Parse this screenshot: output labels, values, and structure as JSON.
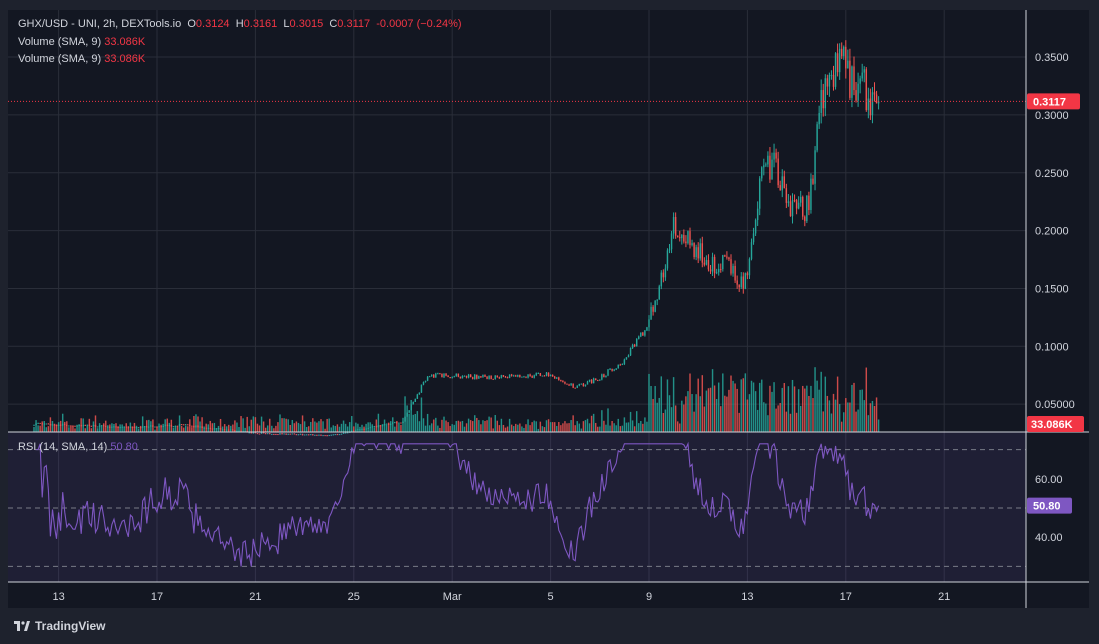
{
  "header": {
    "symbol": "GHX/USD - UNI, 2h, DEXTools.io",
    "o_label": "O",
    "o_value": "0.3124",
    "h_label": "H",
    "h_value": "0.3161",
    "l_label": "L",
    "l_value": "0.3015",
    "c_label": "C",
    "c_value": "0.3117",
    "change": "-0.0007 (−0.24%)"
  },
  "volume_legends": [
    {
      "label": "Volume (SMA, 9)",
      "value": "33.086K"
    },
    {
      "label": "Volume (SMA, 9)",
      "value": "33.086K"
    }
  ],
  "rsi_legend": {
    "label": "RSI (14, SMA, 14)",
    "value": "50.80"
  },
  "footer": {
    "brand": "TradingView"
  },
  "colors": {
    "background": "#131722",
    "up": "#26a69a",
    "down": "#ef5350",
    "rsi_line": "#7e57c2",
    "price_tag": "#f23645",
    "grid": "#2a2e39"
  },
  "chart_data": {
    "type": "candlestick",
    "price_axis": {
      "ticks": [
        "0.3500",
        "0.3000",
        "0.2500",
        "0.2000",
        "0.1500",
        "0.1000",
        "0.05000"
      ],
      "last_price": "0.3117",
      "volume_tag": "33.086K"
    },
    "x_axis": {
      "ticks": [
        {
          "label": "13",
          "date": "Feb 13"
        },
        {
          "label": "17",
          "date": "Feb 17"
        },
        {
          "label": "21",
          "date": "Feb 21"
        },
        {
          "label": "25",
          "date": "Feb 25"
        },
        {
          "label": "Mar",
          "date": "Mar 1"
        },
        {
          "label": "5",
          "date": "Mar 5"
        },
        {
          "label": "9",
          "date": "Mar 9"
        },
        {
          "label": "13",
          "date": "Mar 13"
        },
        {
          "label": "17",
          "date": "Mar 17"
        },
        {
          "label": "21",
          "date": "Mar 21"
        }
      ]
    },
    "price_path": [
      {
        "date": "Feb 12",
        "close": 0.033
      },
      {
        "date": "Feb 16",
        "close": 0.03
      },
      {
        "date": "Feb 18",
        "close": 0.032
      },
      {
        "date": "Feb 21",
        "close": 0.025
      },
      {
        "date": "Feb 24",
        "close": 0.023
      },
      {
        "date": "Feb 27",
        "close": 0.035
      },
      {
        "date": "Feb 28",
        "close": 0.075
      },
      {
        "date": "Mar 3",
        "close": 0.073
      },
      {
        "date": "Mar 5",
        "close": 0.076
      },
      {
        "date": "Mar 6",
        "close": 0.064
      },
      {
        "date": "Mar 7",
        "close": 0.073
      },
      {
        "date": "Mar 8",
        "close": 0.088
      },
      {
        "date": "Mar 9",
        "close": 0.12
      },
      {
        "date": "Mar 10",
        "close": 0.2
      },
      {
        "date": "Mar 11",
        "close": 0.18
      },
      {
        "date": "Mar 12",
        "close": 0.17
      },
      {
        "date": "Mar 13",
        "close": 0.155
      },
      {
        "date": "Mar 13.5",
        "close": 0.24
      },
      {
        "date": "Mar 14",
        "close": 0.26
      },
      {
        "date": "Mar 14.8",
        "close": 0.215
      },
      {
        "date": "Mar 15.5",
        "close": 0.22
      },
      {
        "date": "Mar 16",
        "close": 0.32
      },
      {
        "date": "Mar 16.8",
        "close": 0.345
      },
      {
        "date": "Mar 17.5",
        "close": 0.325
      },
      {
        "date": "Mar 18.3",
        "close": 0.3117
      }
    ],
    "rsi": {
      "ticks": [
        "60.00",
        "40.00"
      ],
      "current": "50.80",
      "levels": [
        70,
        50,
        30
      ]
    }
  }
}
